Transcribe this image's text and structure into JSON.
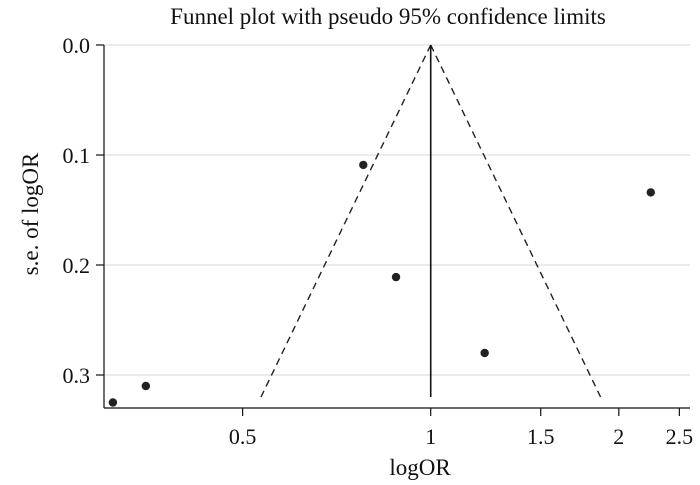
{
  "chart_data": {
    "type": "scatter",
    "title": "Funnel plot with pseudo 95% confidence limits",
    "xlabel": "logOR",
    "ylabel": "s.e. of logOR",
    "x_scale": "log",
    "xlim": [
      0.3,
      2.6
    ],
    "ylim": [
      0.0,
      0.33
    ],
    "y_reversed": true,
    "x_ticks": [
      {
        "value": 0.5,
        "label": "0.5"
      },
      {
        "value": 1,
        "label": "1"
      },
      {
        "value": 1.5,
        "label": "1.5"
      },
      {
        "value": 2,
        "label": "2"
      },
      {
        "value": 2.5,
        "label": "2.5"
      }
    ],
    "y_ticks": [
      {
        "value": 0.0,
        "label": "0.0"
      },
      {
        "value": 0.1,
        "label": "0.1"
      },
      {
        "value": 0.2,
        "label": "0.2"
      },
      {
        "value": 0.3,
        "label": "0.3"
      }
    ],
    "grid": true,
    "points": [
      {
        "x": 0.31,
        "y": 0.325
      },
      {
        "x": 0.35,
        "y": 0.31
      },
      {
        "x": 0.78,
        "y": 0.109
      },
      {
        "x": 0.88,
        "y": 0.211
      },
      {
        "x": 1.22,
        "y": 0.28
      },
      {
        "x": 2.25,
        "y": 0.134
      }
    ],
    "center_line": {
      "x": 1.0
    },
    "confidence_limits": {
      "style": "dashed",
      "apex": {
        "x": 1.0,
        "y": 0.0
      },
      "left_end": {
        "x": 0.535,
        "y": 0.32
      },
      "right_end": {
        "x": 1.87,
        "y": 0.32
      }
    }
  }
}
